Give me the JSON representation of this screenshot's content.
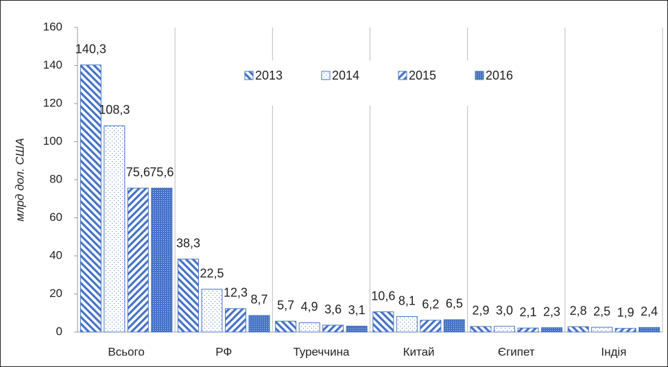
{
  "chart_data": {
    "type": "bar",
    "y_label": "млрд дол. США",
    "categories": [
      "Всього",
      "РФ",
      "Туреччина",
      "Китай",
      "Єгипет",
      "Індія"
    ],
    "series": [
      {
        "name": "2013",
        "color": "#4472c4",
        "pattern": "back-diagonal",
        "values": [
          140.3,
          38.3,
          5.7,
          10.6,
          2.9,
          2.8
        ],
        "value_labels": [
          "140,3",
          "38,3",
          "5,7",
          "10,6",
          "2,9",
          "2,8"
        ]
      },
      {
        "name": "2014",
        "color": "#4472c4",
        "pattern": "sparse-dots",
        "values": [
          108.3,
          22.5,
          4.9,
          8.1,
          3.0,
          2.5
        ],
        "value_labels": [
          "108,3",
          "22,5",
          "4,9",
          "8,1",
          "3,0",
          "2,5"
        ]
      },
      {
        "name": "2015",
        "color": "#4472c4",
        "pattern": "forward-diagonal",
        "values": [
          75.6,
          12.3,
          3.6,
          6.2,
          2.1,
          1.9
        ],
        "value_labels": [
          "75,6",
          "12,3",
          "3,6",
          "6,2",
          "2,1",
          "1,9"
        ]
      },
      {
        "name": "2016",
        "color": "#4472c4",
        "pattern": "dense-dots",
        "values": [
          75.6,
          8.7,
          3.1,
          6.5,
          2.3,
          2.4
        ],
        "value_labels": [
          "75,6",
          "8,7",
          "3,1",
          "6,5",
          "2,3",
          "2,4"
        ]
      }
    ],
    "ylim": [
      0,
      160
    ],
    "yticks": [
      0,
      20,
      40,
      60,
      80,
      100,
      120,
      140,
      160
    ],
    "grid": "vertical",
    "legend_position": "top"
  }
}
